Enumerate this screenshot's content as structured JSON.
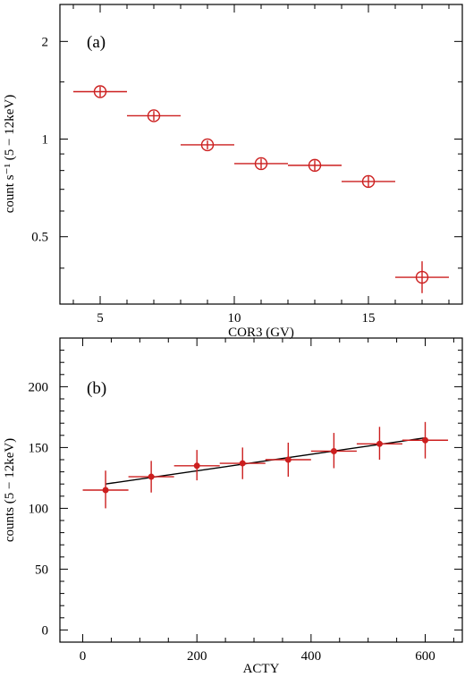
{
  "chart_data": [
    {
      "type": "scatter",
      "panel_label": "(a)",
      "xlabel": "COR3 (GV)",
      "ylabel": "count s⁻¹ (5 − 12keV)",
      "xlim": [
        3.5,
        18.5
      ],
      "ylim": [
        0.31,
        2.6
      ],
      "y_scale": "log",
      "x_ticks": [
        5,
        10,
        15
      ],
      "x_tick_labels": [
        "5",
        "10",
        "15"
      ],
      "y_ticks": [
        0.5,
        1,
        2
      ],
      "y_tick_labels": [
        "0.5",
        "1",
        "2"
      ],
      "marker": "open-circle",
      "color": "#cc1f1f",
      "points": [
        {
          "x": 5,
          "y": 1.4,
          "xerr": 1,
          "ylo": 1.35,
          "yhi": 1.45
        },
        {
          "x": 7,
          "y": 1.18,
          "xerr": 1,
          "ylo": 1.14,
          "yhi": 1.22
        },
        {
          "x": 9,
          "y": 0.96,
          "xerr": 1,
          "ylo": 0.93,
          "yhi": 0.99
        },
        {
          "x": 11,
          "y": 0.84,
          "xerr": 1,
          "ylo": 0.81,
          "yhi": 0.87
        },
        {
          "x": 13,
          "y": 0.83,
          "xerr": 1,
          "ylo": 0.8,
          "yhi": 0.86
        },
        {
          "x": 15,
          "y": 0.74,
          "xerr": 1,
          "ylo": 0.71,
          "yhi": 0.77
        },
        {
          "x": 17,
          "y": 0.375,
          "xerr": 1,
          "ylo": 0.335,
          "yhi": 0.42
        }
      ]
    },
    {
      "type": "scatter",
      "panel_label": "(b)",
      "xlabel": "ACTY",
      "ylabel": "counts (5 − 12keV)",
      "xlim": [
        -40,
        665
      ],
      "ylim": [
        -10,
        240
      ],
      "x_ticks": [
        0,
        200,
        400,
        600
      ],
      "x_tick_labels": [
        "0",
        "200",
        "400",
        "600"
      ],
      "x_minor_step": 50,
      "y_ticks": [
        0,
        50,
        100,
        150,
        200
      ],
      "y_tick_labels": [
        "0",
        "50",
        "100",
        "150",
        "200"
      ],
      "y_minor_step": 10,
      "marker": "filled-dot",
      "color": "#cc1f1f",
      "fit_line": {
        "x": [
          40,
          600
        ],
        "y": [
          120,
          158
        ],
        "color": "#000000"
      },
      "points": [
        {
          "x": 40,
          "y": 115,
          "xerr": 40,
          "ylo": 100,
          "yhi": 131
        },
        {
          "x": 120,
          "y": 126,
          "xerr": 40,
          "ylo": 113,
          "yhi": 139
        },
        {
          "x": 200,
          "y": 135,
          "xerr": 40,
          "ylo": 123,
          "yhi": 148
        },
        {
          "x": 280,
          "y": 137,
          "xerr": 40,
          "ylo": 124,
          "yhi": 150
        },
        {
          "x": 360,
          "y": 140,
          "xerr": 40,
          "ylo": 126,
          "yhi": 154
        },
        {
          "x": 440,
          "y": 147,
          "xerr": 40,
          "ylo": 133,
          "yhi": 162
        },
        {
          "x": 520,
          "y": 153,
          "xerr": 40,
          "ylo": 140,
          "yhi": 167
        },
        {
          "x": 600,
          "y": 156,
          "xerr": 40,
          "ylo": 141,
          "yhi": 171
        }
      ]
    }
  ]
}
